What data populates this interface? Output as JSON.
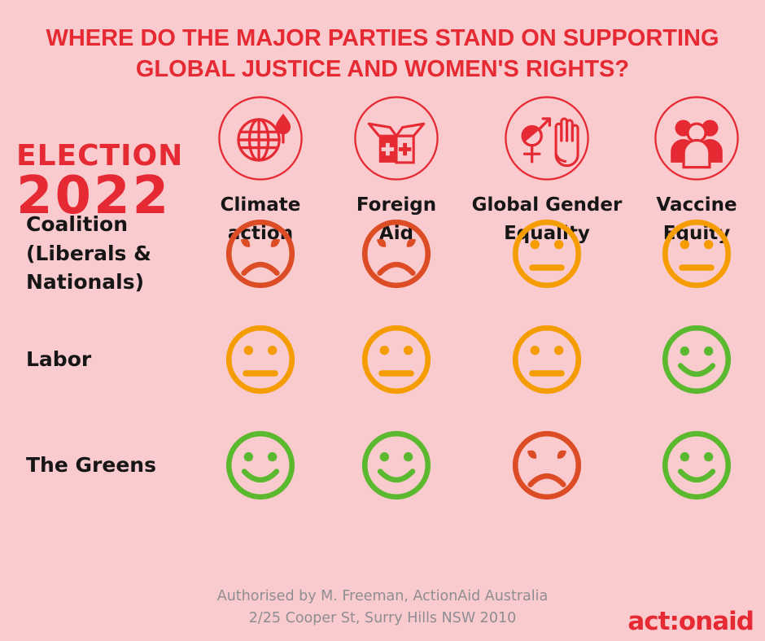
{
  "colors": {
    "background": "#f9cbce",
    "red": "#e62a33",
    "sad": "#dc4d26",
    "neutral": "#f59c00",
    "happy": "#5bb92f",
    "text": "#161616",
    "footer_gray": "#8e8d92"
  },
  "title": {
    "line1": "WHERE DO THE MAJOR PARTIES STAND ON SUPPORTING",
    "line2": "GLOBAL JUSTICE AND WOMEN'S RIGHTS?"
  },
  "election": {
    "label": "ELECTION",
    "year": "2022"
  },
  "columns": [
    {
      "id": "climate-action",
      "label": "Climate\naction",
      "icon": "globe-drop-icon"
    },
    {
      "id": "foreign-aid",
      "label": "Foreign\nAid",
      "icon": "aid-box-icon"
    },
    {
      "id": "global-gender-equality",
      "label": "Global Gender\nEquality",
      "icon": "gender-equality-hand-icon"
    },
    {
      "id": "vaccine-equity",
      "label": "Vaccine\nEquity",
      "icon": "people-group-icon"
    }
  ],
  "rows": [
    {
      "id": "coalition",
      "party": "Coalition\n(Liberals &\nNationals)",
      "ratings": [
        "sad",
        "sad",
        "neutral",
        "neutral"
      ]
    },
    {
      "id": "labor",
      "party": "Labor",
      "ratings": [
        "neutral",
        "neutral",
        "neutral",
        "happy"
      ]
    },
    {
      "id": "the-greens",
      "party": "The Greens",
      "ratings": [
        "happy",
        "happy",
        "sad",
        "happy"
      ]
    }
  ],
  "footer": {
    "line1": "Authorised by M. Freeman, ActionAid Australia",
    "line2": "2/25 Cooper St, Surry Hills NSW 2010",
    "logo": "act:onaid"
  },
  "chart_data": {
    "type": "table",
    "title": "WHERE DO THE MAJOR PARTIES STAND ON SUPPORTING GLOBAL JUSTICE AND WOMEN'S RIGHTS?",
    "subtitle": "ELECTION 2022",
    "columns": [
      "Climate action",
      "Foreign Aid",
      "Global Gender Equality",
      "Vaccine Equity"
    ],
    "rows": [
      "Coalition (Liberals & Nationals)",
      "Labor",
      "The Greens"
    ],
    "values": [
      [
        "sad",
        "sad",
        "neutral",
        "neutral"
      ],
      [
        "neutral",
        "neutral",
        "neutral",
        "happy"
      ],
      [
        "happy",
        "happy",
        "sad",
        "happy"
      ]
    ],
    "value_colors": {
      "sad": "#dc4d26",
      "neutral": "#f59c00",
      "happy": "#5bb92f"
    }
  }
}
